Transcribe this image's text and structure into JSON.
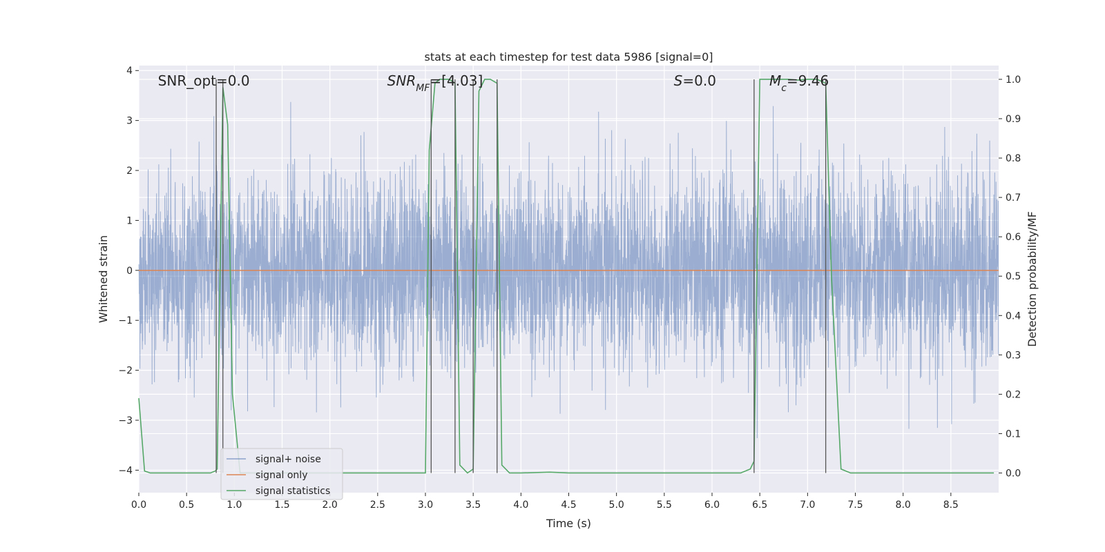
{
  "chart_data": {
    "type": "line",
    "title": "stats at each timestep for test data 5986 [signal=0]",
    "xlabel": "Time (s)",
    "ylabel": "Whitened strain",
    "y2label": "Detection probability/MF",
    "xlim": [
      0.0,
      9.0
    ],
    "ylim": [
      -4.45,
      4.1
    ],
    "y2lim": [
      -0.05,
      1.035
    ],
    "x_ticks": [
      0.0,
      0.5,
      1.0,
      1.5,
      2.0,
      2.5,
      3.0,
      3.5,
      4.0,
      4.5,
      5.0,
      5.5,
      6.0,
      6.5,
      7.0,
      7.5,
      8.0,
      8.5
    ],
    "x_tick_labels": [
      "0.0",
      "0.5",
      "1.0",
      "1.5",
      "2.0",
      "2.5",
      "3.0",
      "3.5",
      "4.0",
      "4.5",
      "5.0",
      "5.5",
      "6.0",
      "6.5",
      "7.0",
      "7.5",
      "8.0",
      "8.5"
    ],
    "y_ticks": [
      -4,
      -3,
      -2,
      -1,
      0,
      1,
      2,
      3,
      4
    ],
    "y_tick_labels": [
      "−4",
      "−3",
      "−2",
      "−1",
      "0",
      "1",
      "2",
      "3",
      "4"
    ],
    "y2_ticks": [
      0.0,
      0.1,
      0.2,
      0.3,
      0.4,
      0.5,
      0.6,
      0.7,
      0.8,
      0.9,
      1.0
    ],
    "y2_tick_labels": [
      "0.0",
      "0.1",
      "0.2",
      "0.3",
      "0.4",
      "0.5",
      "0.6",
      "0.7",
      "0.8",
      "0.9",
      "1.0"
    ],
    "grid": true,
    "legend_position": "lower-left",
    "annotations": [
      {
        "text": "SNR_opt=0.0",
        "x": 0.2
      },
      {
        "text": "SNR",
        "sub": "MF",
        "suffix": "=[4.03]",
        "italic": true,
        "x": 2.6
      },
      {
        "text": "S",
        "suffix": "=0.0",
        "italic": true,
        "x": 5.6
      },
      {
        "text": "M",
        "sub": "c",
        "suffix": "=9.46",
        "italic": true,
        "x": 6.6
      }
    ],
    "vlines": [
      0.81,
      0.88,
      3.06,
      3.31,
      3.5,
      3.75,
      6.44,
      7.19
    ],
    "series": [
      {
        "name": "signal+ noise",
        "color": "#4c72b0",
        "axis": "left",
        "kind": "noise",
        "t_range": [
          0.0,
          9.0
        ],
        "sample_rate": 512,
        "std": 0.95,
        "seed": 5986
      },
      {
        "name": "signal only",
        "color": "#dd8452",
        "axis": "left",
        "x": [
          0.0,
          9.0
        ],
        "y": [
          0.0,
          0.0
        ]
      },
      {
        "name": "signal statistics",
        "color": "#55a868",
        "axis": "right",
        "x": [
          0.0,
          0.06,
          0.12,
          0.5,
          0.75,
          0.8,
          0.82,
          0.88,
          0.93,
          0.98,
          1.06,
          1.2,
          1.5,
          2.0,
          2.5,
          3.0,
          3.04,
          3.1,
          3.15,
          3.2,
          3.25,
          3.31,
          3.36,
          3.44,
          3.5,
          3.56,
          3.62,
          3.68,
          3.75,
          3.8,
          3.88,
          4.0,
          4.3,
          4.5,
          5.0,
          5.5,
          6.0,
          6.3,
          6.4,
          6.44,
          6.5,
          6.6,
          6.7,
          6.8,
          6.9,
          7.0,
          7.1,
          7.19,
          7.25,
          7.35,
          7.45,
          7.6,
          8.0,
          8.5,
          8.95
        ],
        "y": [
          0.19,
          0.005,
          0.0,
          0.0,
          0.0,
          0.005,
          0.01,
          0.98,
          0.885,
          0.2,
          0.0,
          0.0,
          0.0,
          0.0,
          0.0,
          0.0,
          0.82,
          0.99,
          1.0,
          1.0,
          1.0,
          0.99,
          0.02,
          0.0,
          0.01,
          0.97,
          1.0,
          1.0,
          0.99,
          0.02,
          0.0,
          0.0,
          0.002,
          0.0,
          0.0,
          0.0,
          0.0,
          0.0,
          0.01,
          0.03,
          1.0,
          1.0,
          1.0,
          1.0,
          0.998,
          1.0,
          1.0,
          0.99,
          0.5,
          0.01,
          0.0,
          0.0,
          0.0,
          0.0,
          0.0
        ]
      }
    ]
  }
}
